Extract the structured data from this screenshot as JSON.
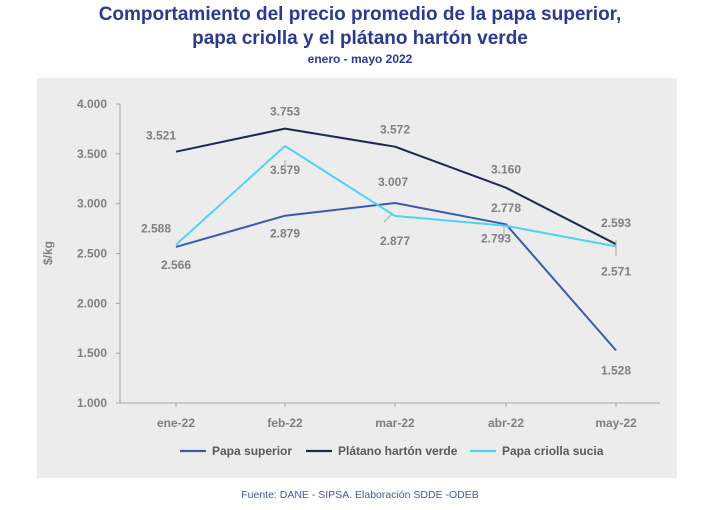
{
  "header": {
    "title_line1": "Comportamiento del precio promedio de la papa superior,",
    "title_line2": "papa criolla y el plátano hartón verde",
    "subtitle": "enero - mayo 2022"
  },
  "source": "Fuente: DANE - SIPSA. Elaboración SDDE -ODEB",
  "chart_data": {
    "type": "line",
    "title": "Comportamiento del precio promedio de la papa superior, papa criolla y el plátano hartón verde",
    "subtitle": "enero - mayo 2022",
    "xlabel": "",
    "ylabel": "$/kg",
    "categories": [
      "ene-22",
      "feb-22",
      "mar-22",
      "abr-22",
      "may-22"
    ],
    "ylim": [
      1000,
      4000
    ],
    "yticks": [
      1000,
      1500,
      2000,
      2500,
      3000,
      3500,
      4000
    ],
    "ytick_labels": [
      "1.000",
      "1.500",
      "2.000",
      "2.500",
      "3.000",
      "3.500",
      "4.000"
    ],
    "grid": false,
    "legend_position": "bottom",
    "series": [
      {
        "name": "Papa superior",
        "color": "#3a5ba9",
        "values": [
          2566,
          2879,
          3007,
          2793,
          1528
        ],
        "labels": [
          "2.566",
          "2.879",
          "3.007",
          "2.793",
          "1.528"
        ]
      },
      {
        "name": "Plátano hartón verde",
        "color": "#1d2a4e",
        "values": [
          3521,
          3753,
          3572,
          3160,
          2593
        ],
        "labels": [
          "3.521",
          "3.753",
          "3.572",
          "3.160",
          "2.593"
        ]
      },
      {
        "name": "Papa criolla sucia",
        "color": "#4fd3f5",
        "values": [
          2588,
          3579,
          2877,
          2778,
          2571
        ],
        "labels": [
          "2.588",
          "3.579",
          "2.877",
          "2.778",
          "2.571"
        ]
      }
    ]
  }
}
